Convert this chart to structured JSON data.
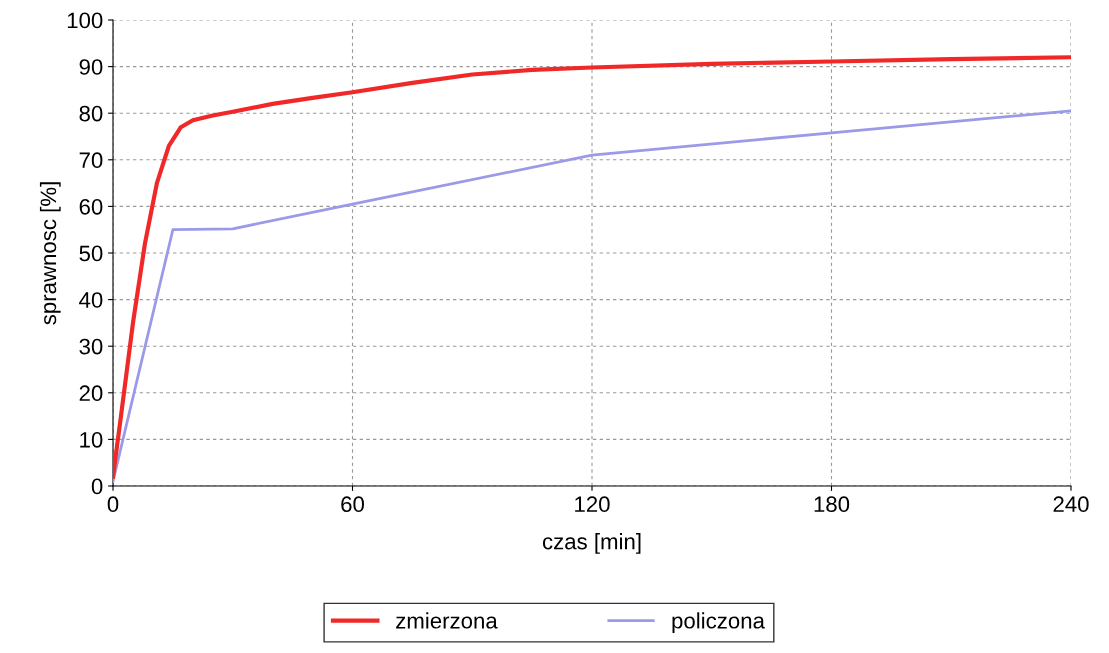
{
  "chart_data": {
    "type": "line",
    "xlabel": "czas [min]",
    "ylabel": "sprawnosc [%]",
    "xlim": [
      0,
      240
    ],
    "ylim": [
      0,
      100
    ],
    "xticks": [
      0,
      60,
      120,
      180,
      240
    ],
    "yticks": [
      0,
      10,
      20,
      30,
      40,
      50,
      60,
      70,
      80,
      90,
      100
    ],
    "grid": true,
    "legend": "bottom",
    "line_style": "solid",
    "series": [
      {
        "name": "zmierzona",
        "color": "#f02828",
        "x": [
          0,
          2,
          5,
          8,
          11,
          14,
          17,
          20,
          25,
          30,
          40,
          50,
          60,
          75,
          90,
          105,
          120,
          150,
          180,
          210,
          240
        ],
        "values": [
          2,
          15,
          35,
          52,
          65,
          73,
          77,
          78.5,
          79.5,
          80.3,
          82,
          83.3,
          84.5,
          86.5,
          88.3,
          89.3,
          89.8,
          90.6,
          91.1,
          91.6,
          92
        ]
      },
      {
        "name": "policzona",
        "color": "#9a9ae8",
        "x": [
          0,
          15,
          30,
          60,
          120,
          180,
          240
        ],
        "values": [
          1,
          55,
          55.2,
          60.5,
          71,
          75.8,
          80.5
        ]
      }
    ]
  }
}
